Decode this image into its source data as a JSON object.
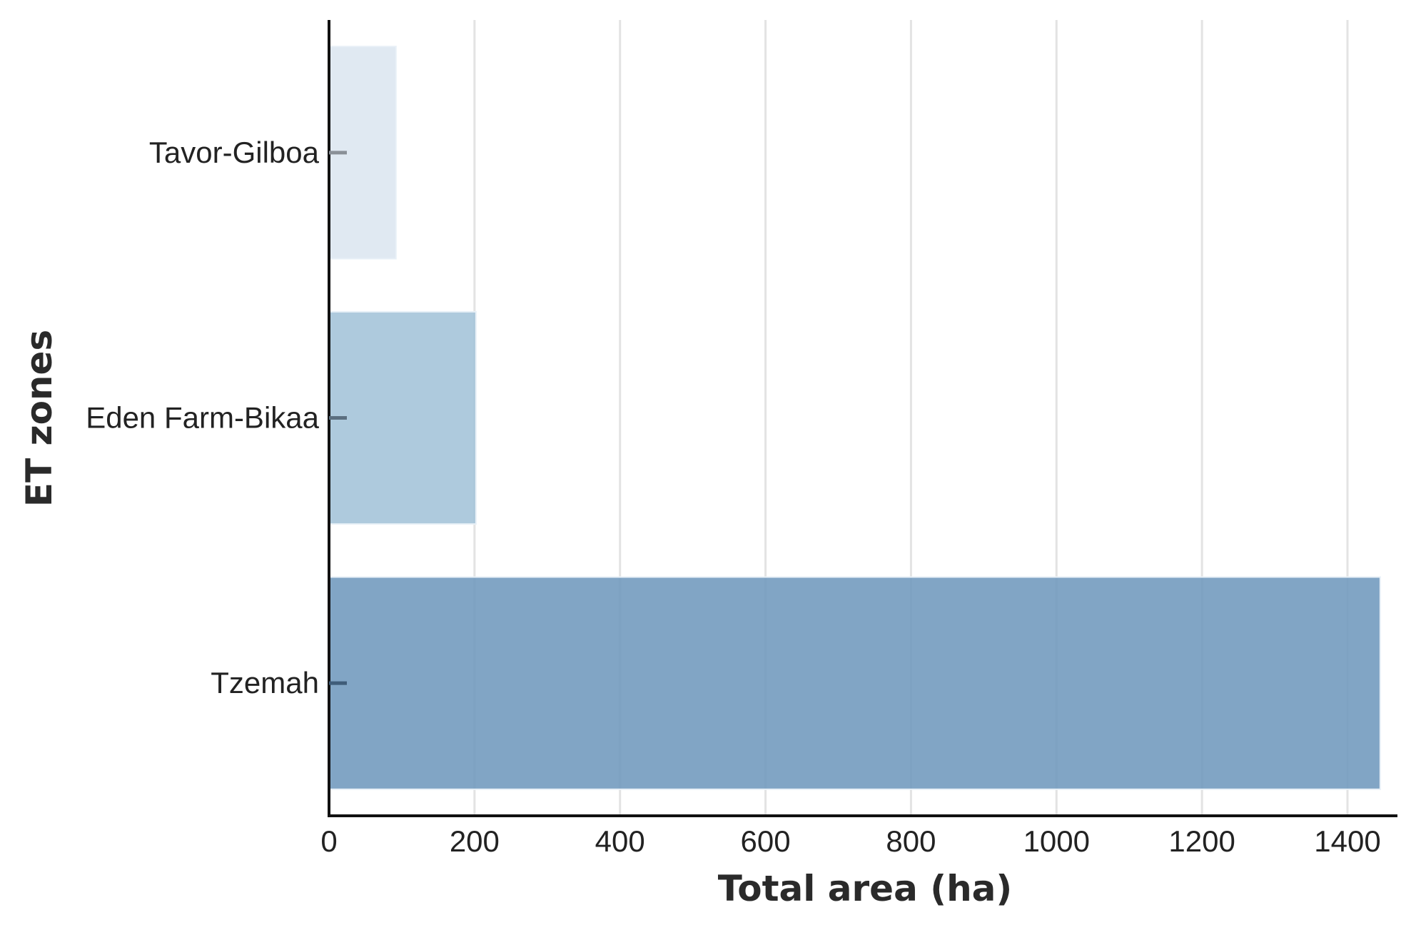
{
  "chart_data": {
    "type": "bar",
    "orientation": "horizontal",
    "title": "",
    "xlabel": "Total area (ha)",
    "ylabel": "ET zones",
    "categories": [
      "Tavor-Gilboa",
      "Eden Farm-Bikaa",
      "Tzemah"
    ],
    "values": [
      92,
      202,
      1445
    ],
    "bar_colors": [
      "#dce6f0",
      "#a3c3d8",
      "#7099bd"
    ],
    "xlim": [
      0,
      1520
    ],
    "xticks": [
      0,
      200,
      400,
      600,
      800,
      1000,
      1200,
      1400
    ],
    "xtick_labels": [
      "0",
      "200",
      "400",
      "600",
      "800",
      "1000",
      "1200",
      "1400"
    ],
    "grid": "vertical",
    "legend": "none"
  }
}
